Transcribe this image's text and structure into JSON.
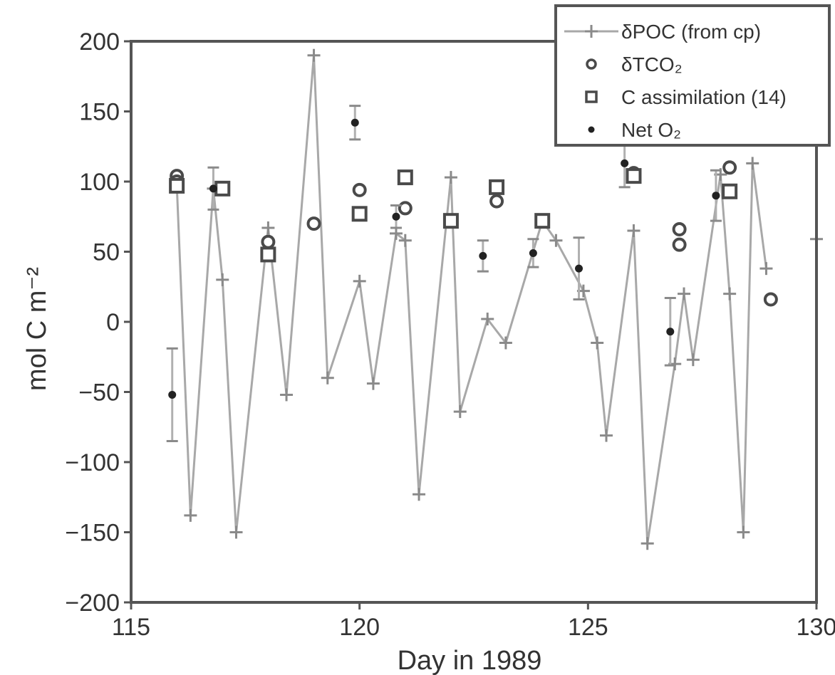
{
  "chart_data": {
    "type": "scatter",
    "xlabel": "Day in 1989",
    "ylabel": "mol C m⁻²",
    "xlim": [
      115,
      130
    ],
    "ylim": [
      -200,
      200
    ],
    "xticks": [
      115,
      120,
      125,
      130
    ],
    "yticks": [
      -200,
      -150,
      -100,
      -50,
      0,
      50,
      100,
      150,
      200
    ],
    "grid": false,
    "legend_position": "top-right",
    "series": [
      {
        "name": "δPOC (from cp)",
        "mode": "line",
        "color": "#a8a8a8",
        "points": [
          [
            116.0,
            98
          ],
          [
            116.3,
            -138
          ],
          [
            116.8,
            95
          ],
          [
            117.0,
            30
          ],
          [
            117.3,
            -150
          ],
          [
            118.0,
            67
          ],
          [
            118.4,
            -52
          ],
          [
            119.0,
            190
          ],
          [
            119.3,
            -40
          ],
          [
            120.0,
            29
          ],
          [
            120.3,
            -44
          ],
          [
            120.8,
            63
          ],
          [
            121.0,
            58
          ],
          [
            121.3,
            -123
          ],
          [
            122.0,
            103
          ],
          [
            122.2,
            -64
          ],
          [
            122.8,
            2
          ],
          [
            123.2,
            -15
          ],
          [
            124.0,
            72
          ],
          [
            124.3,
            58
          ],
          [
            124.9,
            22
          ],
          [
            125.2,
            -15
          ],
          [
            125.4,
            -81
          ],
          [
            126.0,
            65
          ],
          [
            126.3,
            -158
          ],
          [
            126.9,
            -30
          ],
          [
            127.1,
            20
          ],
          [
            127.3,
            -27
          ],
          [
            127.9,
            105
          ],
          [
            128.1,
            20
          ],
          [
            128.4,
            -150
          ],
          [
            128.6,
            113
          ],
          [
            128.9,
            38
          ]
        ],
        "extra_points": [
          [
            130.0,
            59
          ]
        ]
      },
      {
        "name": "δTCO₂",
        "mode": "marker",
        "marker": "circle",
        "color": "#4a4a4a",
        "points": [
          [
            116.0,
            104
          ],
          [
            116.0,
            100
          ],
          [
            118.0,
            57
          ],
          [
            119.0,
            70
          ],
          [
            120.0,
            94
          ],
          [
            121.0,
            81
          ],
          [
            123.0,
            86
          ],
          [
            124.0,
            72
          ],
          [
            126.0,
            106
          ],
          [
            127.0,
            66
          ],
          [
            127.0,
            55
          ],
          [
            128.1,
            110
          ],
          [
            129.0,
            16
          ]
        ]
      },
      {
        "name": "C assimilation (14)",
        "mode": "marker",
        "marker": "square",
        "color": "#4a4a4a",
        "points": [
          [
            116.0,
            97
          ],
          [
            117.0,
            95
          ],
          [
            118.0,
            48
          ],
          [
            120.0,
            77
          ],
          [
            121.0,
            103
          ],
          [
            122.0,
            72
          ],
          [
            123.0,
            96
          ],
          [
            124.0,
            72
          ],
          [
            126.0,
            104
          ],
          [
            128.1,
            93
          ]
        ]
      },
      {
        "name": "Net O₂",
        "mode": "marker",
        "marker": "dot",
        "color": "#222222",
        "points": [
          [
            115.9,
            -52,
            33
          ],
          [
            116.8,
            95,
            15
          ],
          [
            119.9,
            142,
            12
          ],
          [
            120.8,
            75,
            8
          ],
          [
            122.7,
            47,
            11
          ],
          [
            123.8,
            49,
            10
          ],
          [
            124.8,
            38,
            22
          ],
          [
            125.8,
            113,
            17
          ],
          [
            126.8,
            -7,
            24
          ],
          [
            127.8,
            90,
            18
          ]
        ]
      }
    ]
  }
}
